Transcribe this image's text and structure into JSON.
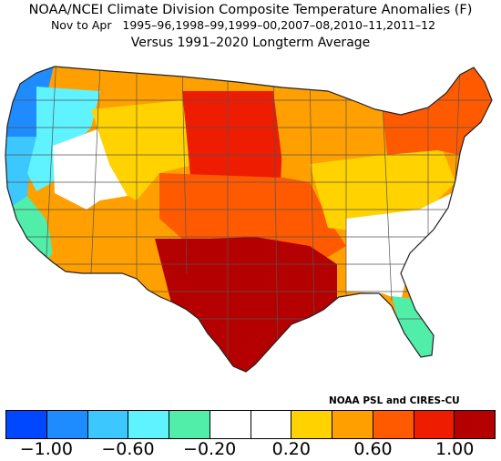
{
  "title": {
    "line1": "NOAA/NCEI Climate Division Composite Temperature Anomalies (F)",
    "line2": "Nov to Apr   1995–96,1998–99,1999–00,2007–08,2010–11,2011–12",
    "line3": "Versus 1991–2020 Longterm Average"
  },
  "credit": "NOAA PSL and CIRES-CU",
  "legend": {
    "colors": [
      "#0048ff",
      "#1e8cff",
      "#3cc8ff",
      "#5ff2ff",
      "#50eea8",
      "#ffffff",
      "#ffffff",
      "#ffd200",
      "#ff9f00",
      "#ff5a00",
      "#ee1c00",
      "#b40000"
    ],
    "ticks": [
      "−1.00",
      "−0.60",
      "−0.20",
      "0.20",
      "0.60",
      "1.00"
    ]
  },
  "map": {
    "regions": [
      {
        "name": "washington-coast",
        "color": "#1e8cff"
      },
      {
        "name": "oregon-coast",
        "color": "#3cc8ff"
      },
      {
        "name": "washington-interior",
        "color": "#5ff2ff"
      },
      {
        "name": "california-coast",
        "color": "#50eea8"
      },
      {
        "name": "great-basin",
        "color": "#ffffff"
      },
      {
        "name": "montana",
        "color": "#ffd200"
      },
      {
        "name": "southwest",
        "color": "#ff9f00"
      },
      {
        "name": "northern-plains",
        "color": "#ee1c00"
      },
      {
        "name": "central-plains",
        "color": "#ff5a00"
      },
      {
        "name": "texas-gulf",
        "color": "#b40000"
      },
      {
        "name": "great-lakes",
        "color": "#ff9f00"
      },
      {
        "name": "ohio-valley",
        "color": "#ffd200"
      },
      {
        "name": "southeast",
        "color": "#ffffff"
      },
      {
        "name": "new-england",
        "color": "#ff5a00"
      },
      {
        "name": "florida",
        "color": "#50eea8"
      }
    ]
  }
}
